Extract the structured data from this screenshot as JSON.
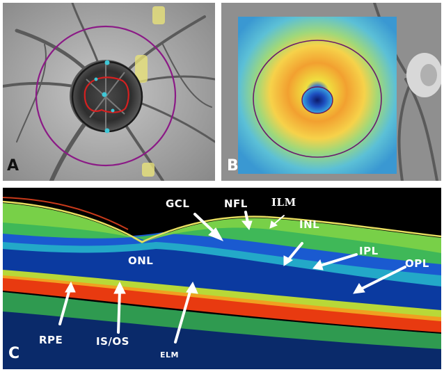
{
  "panels": {
    "a": {
      "label": "A"
    },
    "b": {
      "label": "B"
    },
    "c": {
      "label": "C"
    }
  },
  "oct_layers": {
    "gcl": "GCL",
    "nfl": "NFL",
    "ilm": "ILM",
    "inl": "INL",
    "ipl": "IPL",
    "opl": "OPL",
    "onl": "ONL",
    "rpe": "RPE",
    "isos": "IS/OS",
    "elm": "ELM"
  },
  "colors": {
    "scan_circle": "#8b1a86",
    "cup_outline": "#d42020",
    "disc_outline": "#1a1a1a",
    "disc_marker": "#3fc7d6",
    "arrow": "#ffffff"
  }
}
